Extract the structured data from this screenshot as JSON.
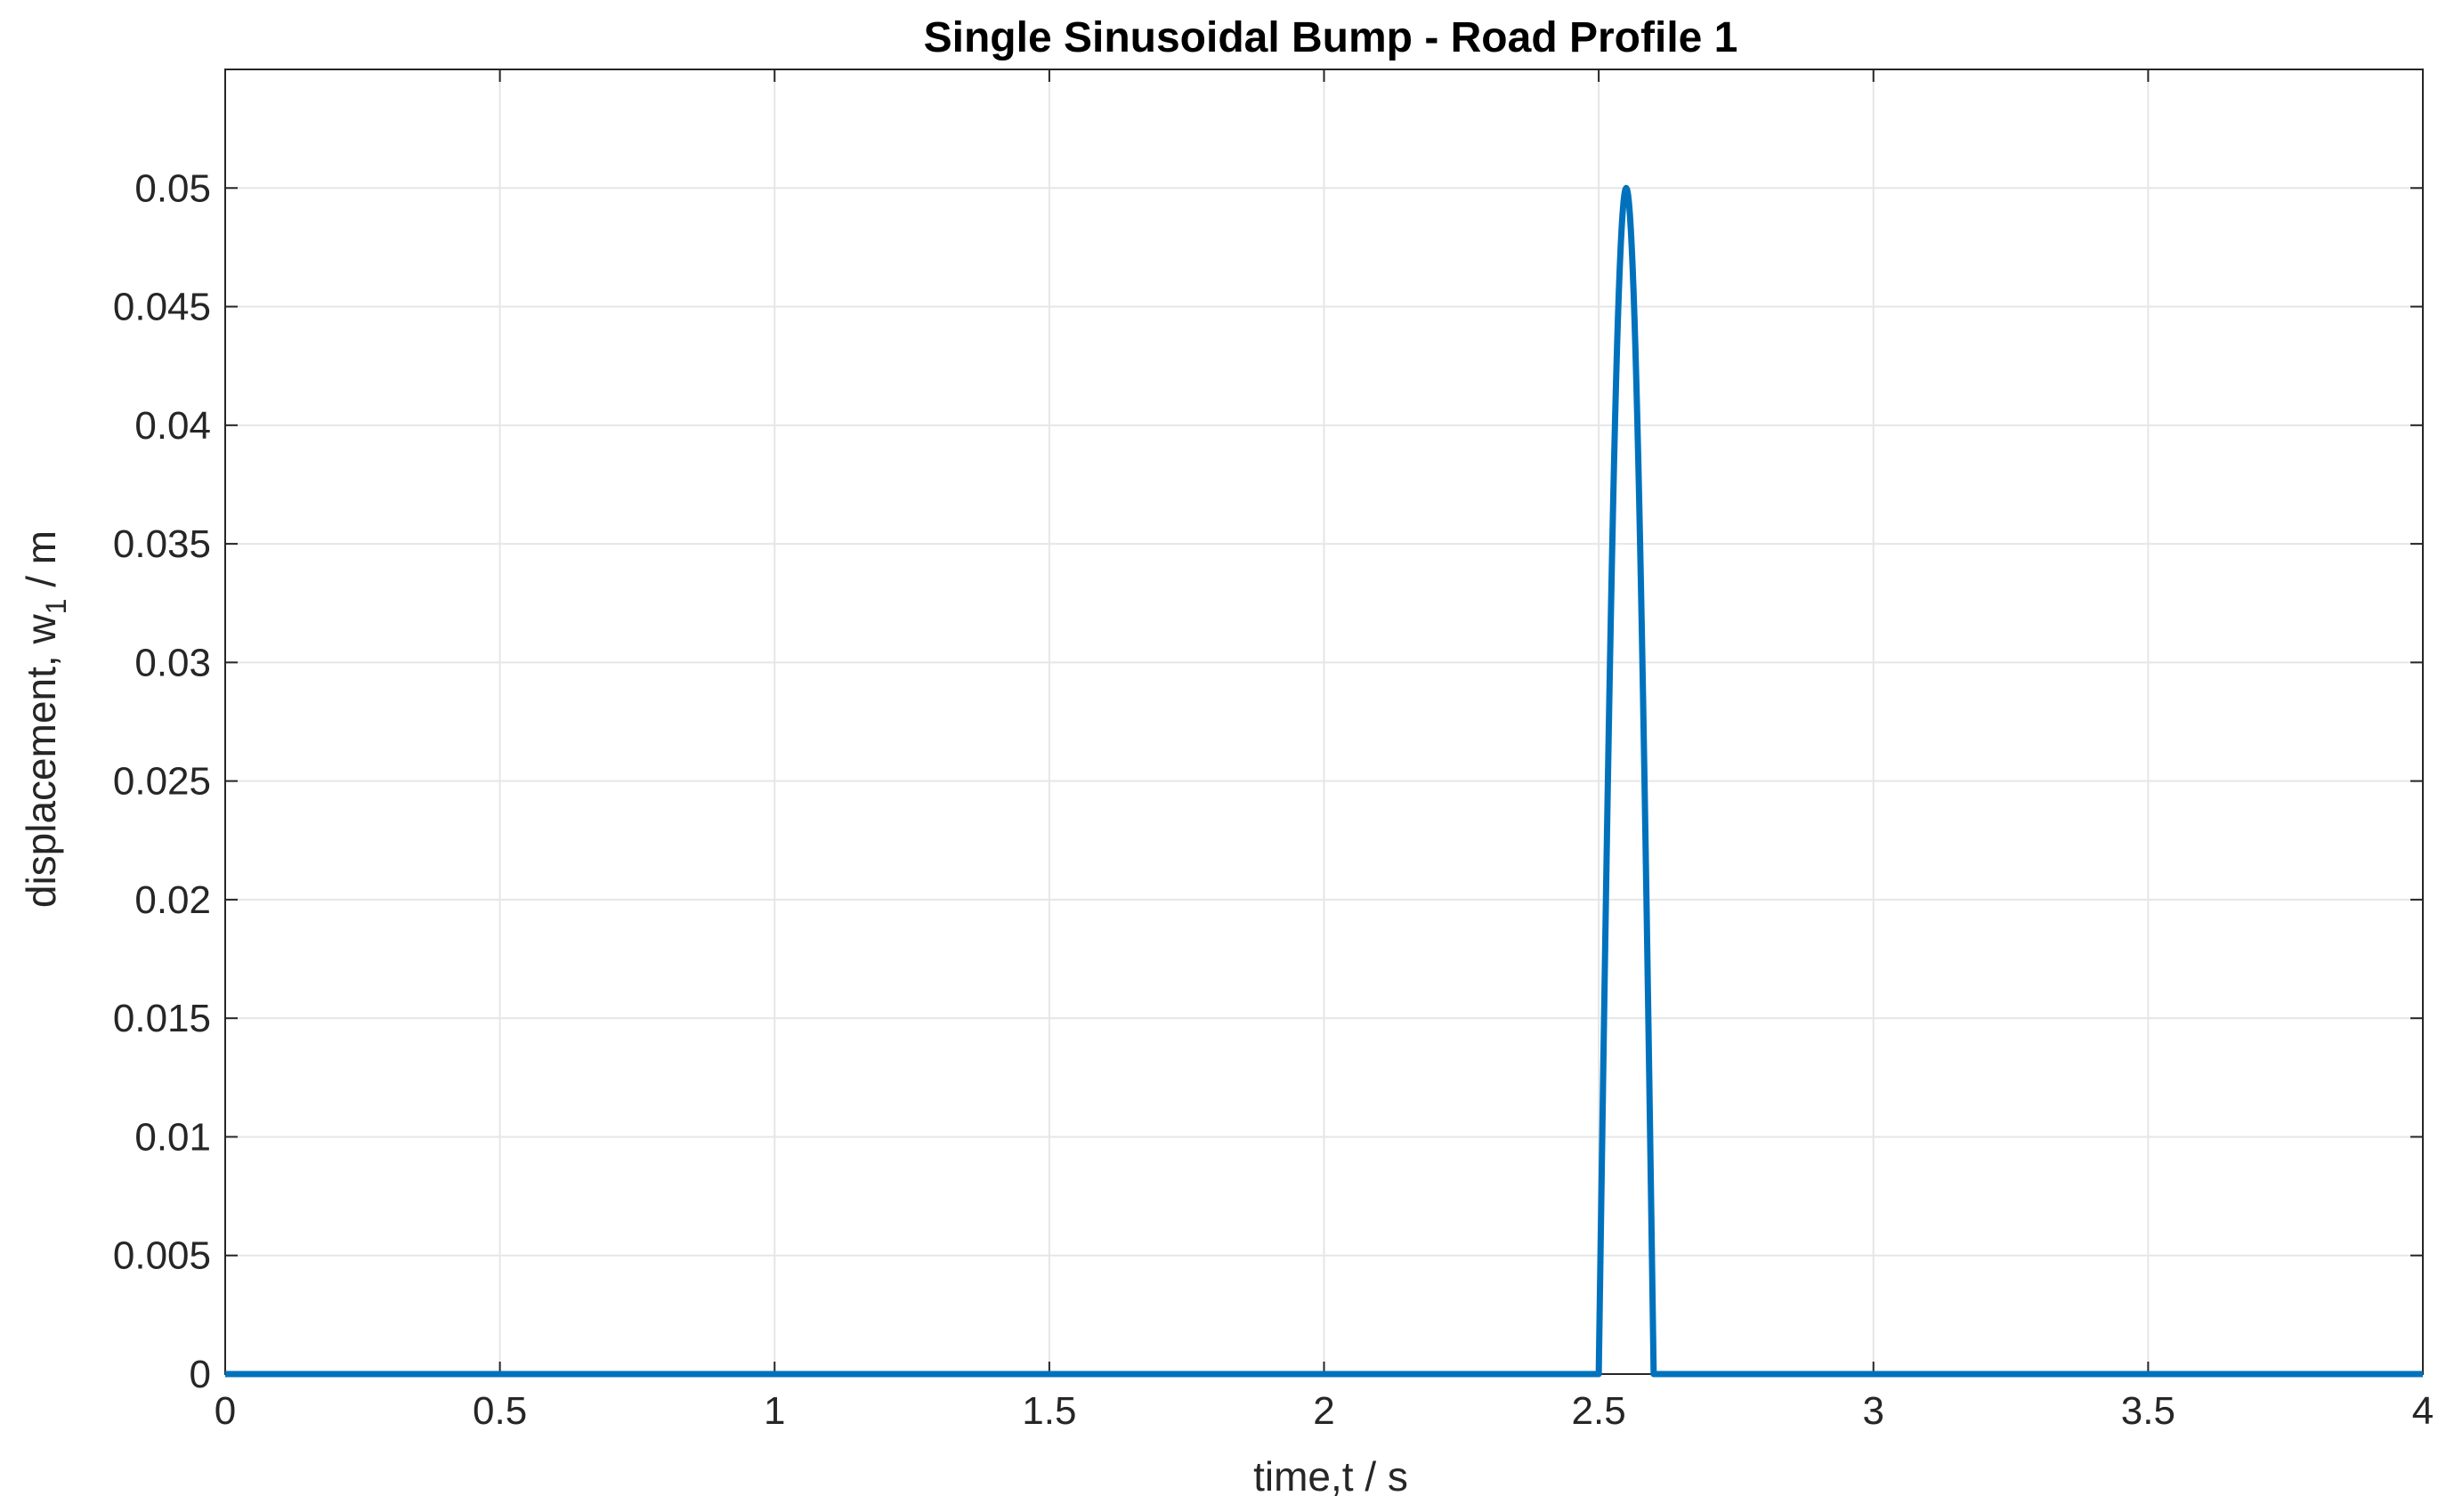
{
  "chart_data": {
    "type": "line",
    "title": "Single Sinusoidal Bump - Road Profile 1",
    "xlabel": "time,t / s",
    "ylabel": {
      "prefix": "displacement, w",
      "subscript": "1",
      "suffix": " / m"
    },
    "xlim": [
      0,
      4
    ],
    "ylim": [
      0,
      0.055
    ],
    "grid": true,
    "xticks": [
      "0",
      "0.5",
      "1",
      "1.5",
      "2",
      "2.5",
      "3",
      "3.5",
      "4"
    ],
    "yticks": [
      "0",
      "0.005",
      "0.01",
      "0.015",
      "0.02",
      "0.025",
      "0.03",
      "0.035",
      "0.04",
      "0.045",
      "0.05"
    ],
    "series": [
      {
        "color": "#0072BD",
        "bump": {
          "start": 2.5,
          "end": 2.6,
          "amplitude": 0.05,
          "shape": "half-sine"
        },
        "x": [
          0,
          2.5,
          2.525,
          2.55,
          2.575,
          2.6,
          4
        ],
        "y": [
          0,
          0,
          0.035355,
          0.05,
          0.035355,
          0,
          0
        ]
      }
    ],
    "colors": {
      "axis": "#262626",
      "grid": "#e6e6e6",
      "line": "#0072BD"
    }
  }
}
